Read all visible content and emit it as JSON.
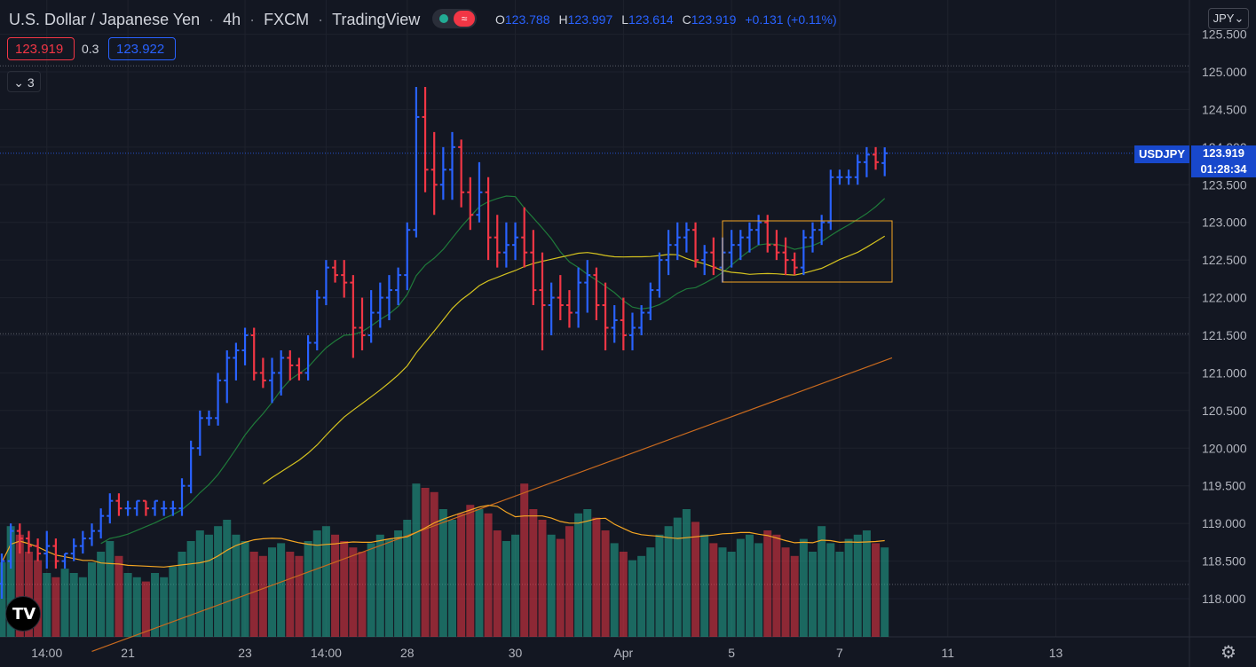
{
  "header": {
    "symbol": "U.S. Dollar / Japanese Yen",
    "interval": "4h",
    "broker": "FXCM",
    "platform": "TradingView",
    "sep": "·"
  },
  "ohlc": {
    "o_label": "O",
    "o": "123.788",
    "h_label": "H",
    "h": "123.997",
    "l_label": "L",
    "l": "123.614",
    "c_label": "C",
    "c": "123.919",
    "change": "+0.131 (+0.11%)"
  },
  "trade": {
    "sell": "123.919",
    "spread": "0.3",
    "buy": "123.922"
  },
  "indicators_collapsed": "3",
  "currency": "JPY",
  "last_price": {
    "symbol": "USDJPY",
    "price": "123.919",
    "countdown": "01:28:34"
  },
  "colors": {
    "up": "#2962ff",
    "down": "#f23645",
    "vol_up": "#22ab94",
    "vol_down": "#f23645",
    "bg": "#131722"
  },
  "icons": {
    "logo": "tradingview-logo-icon",
    "settings": "gear-icon",
    "collapse": "chevron-down-icon",
    "live": "market-status-icon"
  },
  "chart_data": {
    "type": "bar",
    "ylim": [
      117.5,
      125.8
    ],
    "y_ticks": [
      "118.000",
      "118.500",
      "119.000",
      "119.500",
      "120.000",
      "120.500",
      "121.000",
      "121.500",
      "122.000",
      "122.500",
      "123.000",
      "123.500",
      "124.000",
      "124.500",
      "125.000",
      "125.500"
    ],
    "x_ticks": [
      {
        "i": 5,
        "label": "14:00"
      },
      {
        "i": 14,
        "label": "21"
      },
      {
        "i": 27,
        "label": "23"
      },
      {
        "i": 36,
        "label": "14:00"
      },
      {
        "i": 45,
        "label": "28"
      },
      {
        "i": 57,
        "label": "30"
      },
      {
        "i": 69,
        "label": "Apr"
      },
      {
        "i": 81,
        "label": "5"
      },
      {
        "i": 93,
        "label": "7"
      },
      {
        "i": 105,
        "label": "11"
      },
      {
        "i": 117,
        "label": "13"
      }
    ],
    "ohlc": [
      [
        118.2,
        118.6,
        118.0,
        118.5
      ],
      [
        118.5,
        119.0,
        118.4,
        118.9
      ],
      [
        118.9,
        119.0,
        118.6,
        118.8
      ],
      [
        118.8,
        118.9,
        118.6,
        118.7
      ],
      [
        118.7,
        118.8,
        118.5,
        118.6
      ],
      [
        118.6,
        118.9,
        118.4,
        118.7
      ],
      [
        118.7,
        118.8,
        118.4,
        118.5
      ],
      [
        118.5,
        118.6,
        118.4,
        118.6
      ],
      [
        118.6,
        118.8,
        118.5,
        118.7
      ],
      [
        118.7,
        118.9,
        118.6,
        118.8
      ],
      [
        118.8,
        119.0,
        118.7,
        118.9
      ],
      [
        118.9,
        119.2,
        118.8,
        119.1
      ],
      [
        119.1,
        119.4,
        119.0,
        119.3
      ],
      [
        119.3,
        119.4,
        119.1,
        119.2
      ],
      [
        119.2,
        119.3,
        119.1,
        119.2
      ],
      [
        119.2,
        119.3,
        119.1,
        119.3
      ],
      [
        119.3,
        119.3,
        119.1,
        119.2
      ],
      [
        119.2,
        119.3,
        119.1,
        119.3
      ],
      [
        119.2,
        119.3,
        119.1,
        119.2
      ],
      [
        119.2,
        119.3,
        119.1,
        119.2
      ],
      [
        119.2,
        119.6,
        119.1,
        119.5
      ],
      [
        119.5,
        120.1,
        119.4,
        120.0
      ],
      [
        120.0,
        120.5,
        119.9,
        120.4
      ],
      [
        120.4,
        120.5,
        120.3,
        120.4
      ],
      [
        120.4,
        121.0,
        120.3,
        120.9
      ],
      [
        120.9,
        121.3,
        120.6,
        121.2
      ],
      [
        121.2,
        121.4,
        120.9,
        121.3
      ],
      [
        121.3,
        121.6,
        121.1,
        121.5
      ],
      [
        121.5,
        121.6,
        120.9,
        121.0
      ],
      [
        121.0,
        121.2,
        120.8,
        120.9
      ],
      [
        120.9,
        121.2,
        120.6,
        121.0
      ],
      [
        121.0,
        121.3,
        120.7,
        121.2
      ],
      [
        121.2,
        121.3,
        120.9,
        121.1
      ],
      [
        121.1,
        121.2,
        120.9,
        121.0
      ],
      [
        121.0,
        121.5,
        120.9,
        121.4
      ],
      [
        121.4,
        122.1,
        121.3,
        122.0
      ],
      [
        122.0,
        122.5,
        121.9,
        122.4
      ],
      [
        122.4,
        122.5,
        122.2,
        122.3
      ],
      [
        122.3,
        122.5,
        122.0,
        122.2
      ],
      [
        122.2,
        122.3,
        121.2,
        121.6
      ],
      [
        121.6,
        122.0,
        121.3,
        121.5
      ],
      [
        121.5,
        122.1,
        121.4,
        121.8
      ],
      [
        121.8,
        122.2,
        121.6,
        122.0
      ],
      [
        122.0,
        122.3,
        121.7,
        122.1
      ],
      [
        122.1,
        122.4,
        121.9,
        122.3
      ],
      [
        122.3,
        123.0,
        122.1,
        122.9
      ],
      [
        122.9,
        124.8,
        122.8,
        124.4
      ],
      [
        124.4,
        124.8,
        123.4,
        123.7
      ],
      [
        123.7,
        124.2,
        123.1,
        123.5
      ],
      [
        123.5,
        124.0,
        123.3,
        123.7
      ],
      [
        123.7,
        124.2,
        123.3,
        124.0
      ],
      [
        124.0,
        124.1,
        123.2,
        123.4
      ],
      [
        123.4,
        123.6,
        122.9,
        123.1
      ],
      [
        123.1,
        123.8,
        123.0,
        123.4
      ],
      [
        123.4,
        123.6,
        122.5,
        122.8
      ],
      [
        122.8,
        123.1,
        122.4,
        122.6
      ],
      [
        122.6,
        123.0,
        122.4,
        122.7
      ],
      [
        122.7,
        123.0,
        122.5,
        122.8
      ],
      [
        122.8,
        123.2,
        122.4,
        122.6
      ],
      [
        122.6,
        122.9,
        121.9,
        122.1
      ],
      [
        122.1,
        122.6,
        121.3,
        121.9
      ],
      [
        121.9,
        122.2,
        121.5,
        122.0
      ],
      [
        122.0,
        122.3,
        121.7,
        121.9
      ],
      [
        121.9,
        122.1,
        121.6,
        121.8
      ],
      [
        121.8,
        122.4,
        121.6,
        122.2
      ],
      [
        122.2,
        122.5,
        121.8,
        122.3
      ],
      [
        122.3,
        122.4,
        121.7,
        121.9
      ],
      [
        121.9,
        122.2,
        121.3,
        121.6
      ],
      [
        121.6,
        121.9,
        121.4,
        121.7
      ],
      [
        121.7,
        122.0,
        121.3,
        121.5
      ],
      [
        121.5,
        121.8,
        121.3,
        121.6
      ],
      [
        121.6,
        121.9,
        121.5,
        121.8
      ],
      [
        121.8,
        122.2,
        121.7,
        122.1
      ],
      [
        122.1,
        122.6,
        122.0,
        122.5
      ],
      [
        122.5,
        122.9,
        122.3,
        122.7
      ],
      [
        122.7,
        123.0,
        122.5,
        122.8
      ],
      [
        122.8,
        123.0,
        122.6,
        122.9
      ],
      [
        122.9,
        123.0,
        122.4,
        122.5
      ],
      [
        122.5,
        122.7,
        122.3,
        122.6
      ],
      [
        122.6,
        122.8,
        122.3,
        122.4
      ],
      [
        122.4,
        122.8,
        122.2,
        122.6
      ],
      [
        122.6,
        122.9,
        122.4,
        122.7
      ],
      [
        122.7,
        122.9,
        122.5,
        122.8
      ],
      [
        122.8,
        123.0,
        122.6,
        122.9
      ],
      [
        122.9,
        123.1,
        122.7,
        123.0
      ],
      [
        123.0,
        123.1,
        122.6,
        122.7
      ],
      [
        122.7,
        122.9,
        122.5,
        122.6
      ],
      [
        122.6,
        122.8,
        122.3,
        122.5
      ],
      [
        122.5,
        122.6,
        122.3,
        122.4
      ],
      [
        122.4,
        122.9,
        122.3,
        122.8
      ],
      [
        122.8,
        123.0,
        122.6,
        122.9
      ],
      [
        122.9,
        123.1,
        122.7,
        123.0
      ],
      [
        123.0,
        123.7,
        122.9,
        123.6
      ],
      [
        123.6,
        123.7,
        123.5,
        123.6
      ],
      [
        123.6,
        123.7,
        123.5,
        123.6
      ],
      [
        123.6,
        123.9,
        123.5,
        123.8
      ],
      [
        123.8,
        124.0,
        123.6,
        123.9
      ],
      [
        123.9,
        124.0,
        123.7,
        123.8
      ],
      [
        123.788,
        123.997,
        123.614,
        123.919
      ]
    ],
    "volume": [
      35,
      52,
      48,
      40,
      36,
      30,
      28,
      32,
      30,
      28,
      35,
      40,
      45,
      38,
      30,
      28,
      26,
      30,
      28,
      33,
      40,
      45,
      50,
      48,
      52,
      55,
      48,
      45,
      40,
      38,
      42,
      44,
      40,
      38,
      45,
      50,
      52,
      48,
      45,
      42,
      40,
      44,
      48,
      46,
      50,
      55,
      72,
      70,
      68,
      60,
      55,
      58,
      62,
      60,
      58,
      50,
      45,
      48,
      72,
      60,
      55,
      48,
      46,
      52,
      58,
      60,
      56,
      50,
      44,
      40,
      36,
      38,
      42,
      48,
      52,
      56,
      60,
      54,
      48,
      44,
      42,
      40,
      46,
      48,
      44,
      50,
      48,
      42,
      38,
      46,
      40,
      52,
      44,
      40,
      46,
      48,
      50,
      44,
      42
    ]
  }
}
